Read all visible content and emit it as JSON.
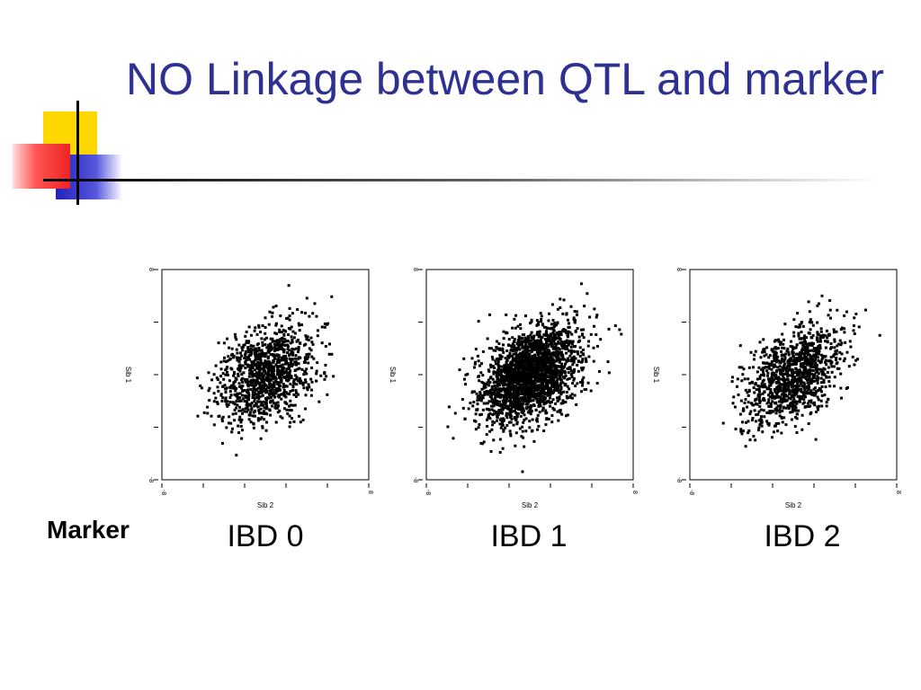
{
  "slide": {
    "title": "NO Linkage between QTL and marker",
    "row_label": "Marker"
  },
  "colors": {
    "title": "#2e3192",
    "deco_yellow": "#ffd700",
    "deco_red": "#ff3333",
    "deco_blue": "#3333cc",
    "points": "#000000"
  },
  "chart_data": [
    {
      "type": "scatter",
      "panel_label": "IBD 0",
      "xlabel": "Sib 2",
      "ylabel": "Sib 1",
      "xlim": [
        -4,
        4
      ],
      "ylim": [
        -4,
        4
      ],
      "x_ticks": [
        "-8",
        "-",
        "-",
        "-",
        "-",
        "8"
      ],
      "y_ticks": [
        "8",
        "-",
        "-",
        "-",
        "-8"
      ],
      "correlation": 0.3,
      "n_points": 1100,
      "grid": false
    },
    {
      "type": "scatter",
      "panel_label": "IBD 1",
      "xlabel": "Sib 2",
      "ylabel": "Sib 1",
      "xlim": [
        -4,
        4
      ],
      "ylim": [
        -4,
        4
      ],
      "x_ticks": [
        "-8",
        "-",
        "-",
        "-",
        "-",
        "8"
      ],
      "y_ticks": [
        "8",
        "-",
        "-",
        "-",
        "-8"
      ],
      "correlation": 0.4,
      "n_points": 2200,
      "grid": false
    },
    {
      "type": "scatter",
      "panel_label": "IBD 2",
      "xlabel": "Sib 2",
      "ylabel": "Sib 1",
      "xlim": [
        -4,
        4
      ],
      "ylim": [
        -4,
        4
      ],
      "x_ticks": [
        "-8",
        "-",
        "-",
        "-",
        "-",
        "8"
      ],
      "y_ticks": [
        "8",
        "-",
        "-",
        "-",
        "-8"
      ],
      "correlation": 0.45,
      "n_points": 1100,
      "grid": false
    }
  ]
}
